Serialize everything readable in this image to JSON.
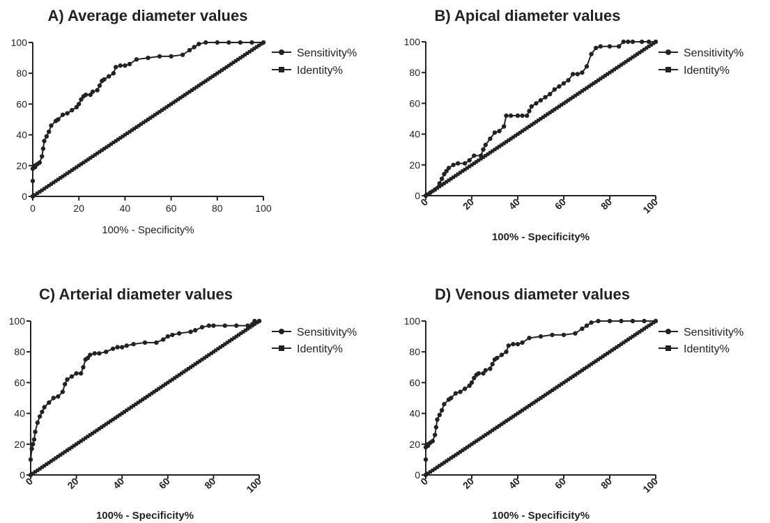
{
  "chart_data": [
    {
      "type": "line",
      "title": "A) Average diameter values",
      "xlabel": "100% - Specificity%",
      "xlabel_bold": false,
      "xtick_rotated": false,
      "ylabel": "",
      "xlim": [
        0,
        100
      ],
      "ylim": [
        0,
        100
      ],
      "xticks": [
        "0",
        "20",
        "40",
        "60",
        "80",
        "100"
      ],
      "yticks": [
        "0",
        "20",
        "40",
        "60",
        "80",
        "100"
      ],
      "grid": false,
      "legend_position": "right",
      "legend": [
        "Sensitivity%",
        "Identity%"
      ],
      "series": [
        {
          "name": "Sensitivity%",
          "marker": "circle",
          "x": [
            0,
            0,
            0,
            0.5,
            1,
            1,
            2,
            3,
            4,
            4.5,
            5,
            6,
            7,
            8,
            10,
            11,
            13,
            15,
            17,
            19,
            20,
            21,
            22,
            23,
            25,
            26,
            28,
            29,
            30,
            31,
            33,
            35,
            36,
            38,
            40,
            42,
            45,
            50,
            55,
            60,
            65,
            68,
            70,
            72,
            75,
            80,
            85,
            90,
            95,
            100
          ],
          "y": [
            0,
            10,
            18,
            19,
            19,
            20,
            21,
            22,
            26,
            31,
            36,
            39,
            42,
            46,
            49,
            50,
            53,
            54,
            56,
            58,
            60,
            63,
            65,
            66,
            66,
            68,
            69,
            72,
            75,
            76,
            78,
            80,
            84,
            85,
            85,
            86,
            89,
            90,
            91,
            91,
            92,
            95,
            97,
            99,
            100,
            100,
            100,
            100,
            100,
            100
          ]
        },
        {
          "name": "Identity%",
          "marker": "square",
          "x": [
            0,
            100
          ],
          "y": [
            0,
            100
          ]
        }
      ]
    },
    {
      "type": "line",
      "title": "B) Apical diameter values",
      "xlabel": "100% - Specificity%",
      "xlabel_bold": true,
      "xtick_rotated": true,
      "ylabel": "",
      "xlim": [
        0,
        100
      ],
      "ylim": [
        0,
        100
      ],
      "xticks": [
        "0",
        "20",
        "40",
        "60",
        "80",
        "100"
      ],
      "yticks": [
        "0",
        "20",
        "40",
        "60",
        "80",
        "100"
      ],
      "grid": false,
      "legend_position": "right",
      "legend": [
        "Sensitivity%",
        "Identity%"
      ],
      "series": [
        {
          "name": "Sensitivity%",
          "marker": "circle",
          "x": [
            0,
            2,
            4,
            6,
            7,
            8,
            9,
            10,
            12,
            14,
            17,
            19,
            21,
            24,
            25,
            26,
            28,
            30,
            32,
            34,
            35,
            37,
            40,
            42,
            44,
            45,
            46,
            48,
            50,
            52,
            54,
            56,
            58,
            60,
            62,
            64,
            66,
            68,
            70,
            72,
            74,
            76,
            80,
            84,
            86,
            88,
            90,
            94,
            97,
            100
          ],
          "y": [
            0,
            2,
            4,
            8,
            11,
            14,
            16,
            18,
            20,
            21,
            21,
            23,
            26,
            26,
            30,
            33,
            37,
            41,
            42,
            45,
            52,
            52,
            52,
            52,
            52,
            55,
            58,
            60,
            62,
            64,
            66,
            69,
            71,
            73,
            75,
            79,
            79,
            80,
            84,
            92,
            96,
            97,
            97,
            97,
            100,
            100,
            100,
            100,
            100,
            100
          ]
        },
        {
          "name": "Identity%",
          "marker": "square",
          "x": [
            0,
            100
          ],
          "y": [
            0,
            100
          ]
        }
      ]
    },
    {
      "type": "line",
      "title": "C) Arterial diameter values",
      "xlabel": "100% - Specificity%",
      "xlabel_bold": true,
      "xtick_rotated": true,
      "ylabel": "",
      "xlim": [
        0,
        100
      ],
      "ylim": [
        0,
        100
      ],
      "xticks": [
        "0",
        "20",
        "40",
        "60",
        "80",
        "100"
      ],
      "yticks": [
        "0",
        "20",
        "40",
        "60",
        "80",
        "100"
      ],
      "grid": false,
      "legend_position": "right",
      "legend": [
        "Sensitivity%",
        "Identity%"
      ],
      "series": [
        {
          "name": "Sensitivity%",
          "marker": "circle",
          "x": [
            0,
            0,
            0.5,
            1,
            1.5,
            2,
            3,
            4,
            5,
            6,
            8,
            10,
            12,
            14,
            15,
            16,
            18,
            20,
            22,
            23,
            24,
            25,
            26,
            28,
            30,
            33,
            36,
            38,
            40,
            42,
            45,
            50,
            55,
            58,
            60,
            62,
            65,
            70,
            72,
            75,
            78,
            80,
            85,
            90,
            95,
            97,
            98,
            100
          ],
          "y": [
            0,
            10,
            17,
            20,
            23,
            28,
            34,
            38,
            41,
            44,
            47,
            50,
            51,
            54,
            59,
            62,
            64,
            66,
            66,
            70,
            75,
            76,
            78,
            79,
            79,
            80,
            82,
            83,
            83,
            84,
            85,
            86,
            86,
            88,
            90,
            91,
            92,
            93,
            94,
            96,
            97,
            97,
            97,
            97,
            97,
            98,
            100,
            100
          ]
        },
        {
          "name": "Identity%",
          "marker": "square",
          "x": [
            0,
            100
          ],
          "y": [
            0,
            100
          ]
        }
      ]
    },
    {
      "type": "line",
      "title": "D) Venous diameter  values",
      "xlabel": "100% - Specificity%",
      "xlabel_bold": true,
      "xtick_rotated": true,
      "ylabel": "",
      "xlim": [
        0,
        100
      ],
      "ylim": [
        0,
        100
      ],
      "xticks": [
        "0",
        "20",
        "40",
        "60",
        "80",
        "100"
      ],
      "yticks": [
        "0",
        "20",
        "40",
        "60",
        "80",
        "100"
      ],
      "grid": false,
      "legend_position": "right",
      "legend": [
        "Sensitivity%",
        "Identity%"
      ],
      "series": [
        {
          "name": "Sensitivity%",
          "marker": "circle",
          "x": [
            0,
            0,
            0,
            0.5,
            1,
            1,
            2,
            3,
            4,
            4.5,
            5,
            6,
            7,
            8,
            10,
            11,
            13,
            15,
            17,
            19,
            20,
            21,
            22,
            23,
            25,
            26,
            28,
            29,
            30,
            31,
            33,
            35,
            36,
            38,
            40,
            42,
            45,
            50,
            55,
            60,
            65,
            68,
            70,
            72,
            75,
            80,
            85,
            90,
            95,
            100
          ],
          "y": [
            0,
            10,
            18,
            19,
            19,
            20,
            21,
            22,
            26,
            31,
            36,
            39,
            42,
            46,
            49,
            50,
            53,
            54,
            56,
            58,
            60,
            63,
            65,
            66,
            66,
            68,
            69,
            72,
            75,
            76,
            78,
            80,
            84,
            85,
            85,
            86,
            89,
            90,
            91,
            91,
            92,
            95,
            97,
            99,
            100,
            100,
            100,
            100,
            100,
            100
          ]
        },
        {
          "name": "Identity%",
          "marker": "square",
          "x": [
            0,
            100
          ],
          "y": [
            0,
            100
          ]
        }
      ]
    }
  ],
  "style": {
    "ink": "#222222"
  }
}
